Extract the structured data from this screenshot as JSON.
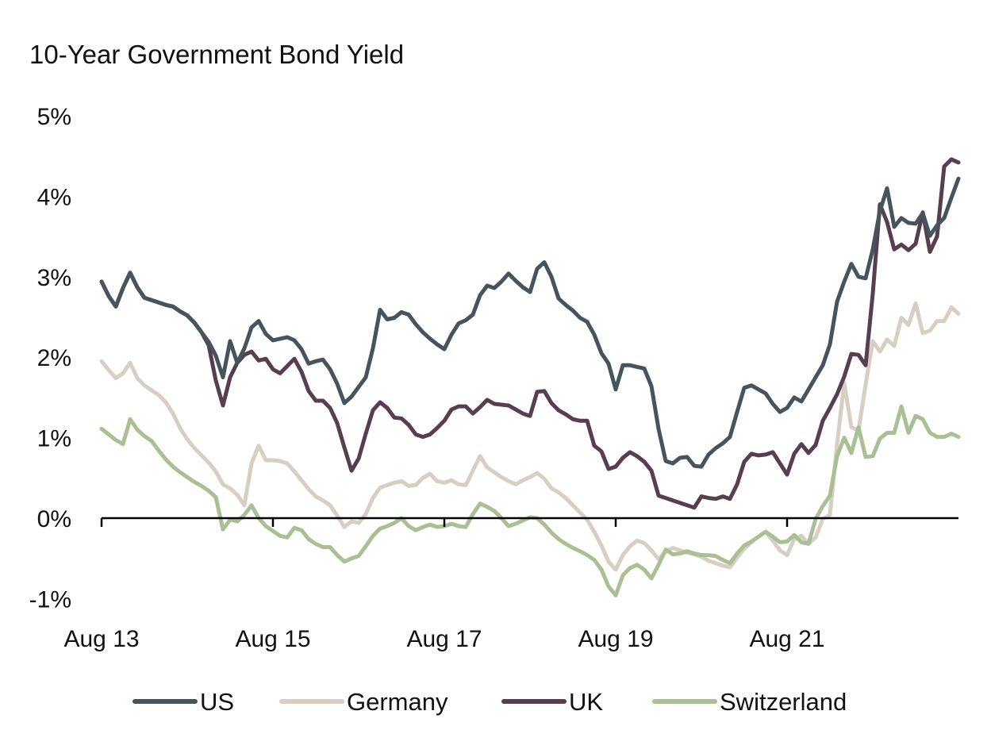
{
  "chart_data": {
    "type": "line",
    "title": "10-Year Government Bond Yield",
    "ylim": [
      -1,
      5
    ],
    "y_ticks": [
      {
        "value": 5,
        "label": "5%"
      },
      {
        "value": 4,
        "label": "4%"
      },
      {
        "value": 3,
        "label": "3%"
      },
      {
        "value": 2,
        "label": "2%"
      },
      {
        "value": 1,
        "label": "1%"
      },
      {
        "value": 0,
        "label": "0%"
      },
      {
        "value": -1,
        "label": "-1%"
      }
    ],
    "x_ticks": [
      {
        "date": "2013-08",
        "label": "Aug 13"
      },
      {
        "date": "2015-08",
        "label": "Aug 15"
      },
      {
        "date": "2017-08",
        "label": "Aug 17"
      },
      {
        "date": "2019-08",
        "label": "Aug 19"
      },
      {
        "date": "2021-08",
        "label": "Aug 21"
      }
    ],
    "xlim": [
      "2013-08",
      "2023-08"
    ],
    "grid": false,
    "legend_position": "bottom",
    "x": [
      "2013-08",
      "2013-09",
      "2013-10",
      "2013-11",
      "2013-12",
      "2014-01",
      "2014-02",
      "2014-03",
      "2014-04",
      "2014-05",
      "2014-06",
      "2014-07",
      "2014-08",
      "2014-09",
      "2014-10",
      "2014-11",
      "2014-12",
      "2015-01",
      "2015-02",
      "2015-03",
      "2015-04",
      "2015-05",
      "2015-06",
      "2015-07",
      "2015-08",
      "2015-09",
      "2015-10",
      "2015-11",
      "2015-12",
      "2016-01",
      "2016-02",
      "2016-03",
      "2016-04",
      "2016-05",
      "2016-06",
      "2016-07",
      "2016-08",
      "2016-09",
      "2016-10",
      "2016-11",
      "2016-12",
      "2017-01",
      "2017-02",
      "2017-03",
      "2017-04",
      "2017-05",
      "2017-06",
      "2017-07",
      "2017-08",
      "2017-09",
      "2017-10",
      "2017-11",
      "2017-12",
      "2018-01",
      "2018-02",
      "2018-03",
      "2018-04",
      "2018-05",
      "2018-06",
      "2018-07",
      "2018-08",
      "2018-09",
      "2018-10",
      "2018-11",
      "2018-12",
      "2019-01",
      "2019-02",
      "2019-03",
      "2019-04",
      "2019-05",
      "2019-06",
      "2019-07",
      "2019-08",
      "2019-09",
      "2019-10",
      "2019-11",
      "2019-12",
      "2020-01",
      "2020-02",
      "2020-03",
      "2020-04",
      "2020-05",
      "2020-06",
      "2020-07",
      "2020-08",
      "2020-09",
      "2020-10",
      "2020-11",
      "2020-12",
      "2021-01",
      "2021-02",
      "2021-03",
      "2021-04",
      "2021-05",
      "2021-06",
      "2021-07",
      "2021-08",
      "2021-09",
      "2021-10",
      "2021-11",
      "2021-12",
      "2022-01",
      "2022-02",
      "2022-03",
      "2022-04",
      "2022-05",
      "2022-06",
      "2022-07",
      "2022-08",
      "2022-09",
      "2022-10",
      "2022-11",
      "2022-12",
      "2023-01",
      "2023-02",
      "2023-03",
      "2023-04",
      "2023-05",
      "2023-06",
      "2023-07",
      "2023-08"
    ],
    "series": [
      {
        "name": "US",
        "color": "#46545c",
        "values": [
          2.94,
          2.76,
          2.63,
          2.86,
          3.05,
          2.87,
          2.74,
          2.71,
          2.68,
          2.65,
          2.63,
          2.57,
          2.52,
          2.43,
          2.31,
          2.19,
          2.02,
          1.75,
          2.2,
          1.93,
          2.11,
          2.37,
          2.45,
          2.29,
          2.21,
          2.23,
          2.25,
          2.21,
          2.1,
          1.92,
          1.95,
          1.97,
          1.85,
          1.67,
          1.43,
          1.51,
          1.63,
          1.75,
          2.11,
          2.59,
          2.47,
          2.49,
          2.56,
          2.53,
          2.41,
          2.31,
          2.23,
          2.16,
          2.1,
          2.28,
          2.42,
          2.46,
          2.53,
          2.77,
          2.89,
          2.86,
          2.94,
          3.04,
          2.95,
          2.87,
          2.81,
          3.1,
          3.18,
          3.0,
          2.73,
          2.65,
          2.58,
          2.49,
          2.44,
          2.28,
          2.05,
          1.92,
          1.6,
          1.9,
          1.9,
          1.88,
          1.86,
          1.64,
          1.11,
          0.71,
          0.68,
          0.75,
          0.76,
          0.65,
          0.64,
          0.79,
          0.87,
          0.93,
          1.01,
          1.32,
          1.62,
          1.65,
          1.6,
          1.55,
          1.42,
          1.32,
          1.37,
          1.5,
          1.45,
          1.6,
          1.75,
          1.9,
          2.16,
          2.69,
          2.94,
          3.16,
          3.0,
          2.98,
          3.34,
          3.82,
          4.1,
          3.62,
          3.73,
          3.67,
          3.66,
          3.79,
          3.51,
          3.64,
          3.73,
          3.98,
          4.22
        ]
      },
      {
        "name": "Germany",
        "color": "#d7cfc2",
        "values": [
          1.95,
          1.84,
          1.74,
          1.8,
          1.93,
          1.74,
          1.65,
          1.59,
          1.53,
          1.44,
          1.3,
          1.12,
          0.98,
          0.87,
          0.78,
          0.69,
          0.58,
          0.42,
          0.37,
          0.29,
          0.16,
          0.68,
          0.9,
          0.72,
          0.72,
          0.71,
          0.68,
          0.58,
          0.47,
          0.36,
          0.27,
          0.22,
          0.16,
          0.03,
          -0.11,
          -0.04,
          -0.06,
          0.05,
          0.25,
          0.38,
          0.41,
          0.44,
          0.46,
          0.4,
          0.41,
          0.5,
          0.55,
          0.46,
          0.44,
          0.47,
          0.42,
          0.41,
          0.59,
          0.77,
          0.63,
          0.57,
          0.51,
          0.46,
          0.42,
          0.47,
          0.51,
          0.56,
          0.49,
          0.37,
          0.32,
          0.25,
          0.16,
          0.07,
          -0.02,
          -0.17,
          -0.34,
          -0.54,
          -0.64,
          -0.46,
          -0.35,
          -0.28,
          -0.31,
          -0.4,
          -0.51,
          -0.42,
          -0.37,
          -0.4,
          -0.43,
          -0.45,
          -0.48,
          -0.53,
          -0.56,
          -0.59,
          -0.61,
          -0.49,
          -0.38,
          -0.3,
          -0.23,
          -0.17,
          -0.28,
          -0.4,
          -0.46,
          -0.26,
          -0.22,
          -0.32,
          -0.24,
          -0.01,
          0.04,
          0.92,
          1.68,
          1.13,
          1.09,
          1.66,
          2.2,
          2.07,
          2.22,
          2.14,
          2.49,
          2.4,
          2.67,
          2.3,
          2.33,
          2.45,
          2.45,
          2.62,
          2.54
        ]
      },
      {
        "name": "UK",
        "color": "#573f4f",
        "values": [
          2.94,
          2.76,
          2.63,
          2.86,
          3.05,
          2.87,
          2.74,
          2.71,
          2.68,
          2.65,
          2.63,
          2.57,
          2.52,
          2.43,
          2.31,
          2.15,
          1.71,
          1.4,
          1.75,
          1.93,
          2.03,
          2.07,
          1.96,
          1.98,
          1.85,
          1.8,
          1.89,
          1.98,
          1.82,
          1.58,
          1.46,
          1.46,
          1.37,
          1.18,
          0.88,
          0.59,
          0.74,
          1.05,
          1.34,
          1.44,
          1.37,
          1.25,
          1.24,
          1.16,
          1.04,
          1.01,
          1.04,
          1.12,
          1.21,
          1.35,
          1.39,
          1.39,
          1.3,
          1.38,
          1.47,
          1.42,
          1.41,
          1.4,
          1.35,
          1.3,
          1.27,
          1.57,
          1.58,
          1.43,
          1.34,
          1.29,
          1.23,
          1.21,
          1.21,
          0.9,
          0.83,
          0.61,
          0.64,
          0.75,
          0.82,
          0.77,
          0.7,
          0.59,
          0.28,
          0.25,
          0.22,
          0.19,
          0.16,
          0.13,
          0.27,
          0.25,
          0.24,
          0.27,
          0.24,
          0.42,
          0.7,
          0.8,
          0.78,
          0.79,
          0.82,
          0.68,
          0.54,
          0.8,
          0.92,
          0.81,
          0.91,
          1.21,
          1.37,
          1.54,
          1.76,
          2.04,
          2.03,
          1.9,
          2.79,
          3.9,
          3.68,
          3.34,
          3.4,
          3.33,
          3.41,
          3.8,
          3.31,
          3.5,
          4.37,
          4.46,
          4.42
        ]
      },
      {
        "name": "Switzerland",
        "color": "#a9c095",
        "values": [
          1.11,
          1.04,
          0.97,
          0.92,
          1.23,
          1.1,
          1.02,
          0.96,
          0.84,
          0.73,
          0.64,
          0.57,
          0.51,
          0.45,
          0.4,
          0.34,
          0.26,
          -0.14,
          -0.02,
          -0.04,
          0.04,
          0.16,
          0.0,
          -0.1,
          -0.16,
          -0.22,
          -0.24,
          -0.12,
          -0.15,
          -0.26,
          -0.32,
          -0.36,
          -0.36,
          -0.46,
          -0.54,
          -0.5,
          -0.47,
          -0.35,
          -0.22,
          -0.13,
          -0.1,
          -0.06,
          0.0,
          -0.1,
          -0.15,
          -0.11,
          -0.08,
          -0.11,
          -0.1,
          -0.07,
          -0.1,
          -0.11,
          0.05,
          0.18,
          0.14,
          0.09,
          0.0,
          -0.1,
          -0.07,
          -0.03,
          0.01,
          0.0,
          -0.08,
          -0.18,
          -0.26,
          -0.32,
          -0.37,
          -0.41,
          -0.46,
          -0.52,
          -0.64,
          -0.85,
          -0.96,
          -0.71,
          -0.62,
          -0.58,
          -0.64,
          -0.75,
          -0.58,
          -0.39,
          -0.45,
          -0.44,
          -0.41,
          -0.44,
          -0.46,
          -0.46,
          -0.47,
          -0.52,
          -0.56,
          -0.44,
          -0.34,
          -0.29,
          -0.23,
          -0.17,
          -0.23,
          -0.3,
          -0.29,
          -0.21,
          -0.3,
          -0.32,
          -0.01,
          0.15,
          0.28,
          0.77,
          1.0,
          0.81,
          1.13,
          0.76,
          0.77,
          0.99,
          1.06,
          1.06,
          1.39,
          1.06,
          1.27,
          1.23,
          1.06,
          1.01,
          1.01,
          1.05,
          1.01
        ]
      }
    ]
  }
}
